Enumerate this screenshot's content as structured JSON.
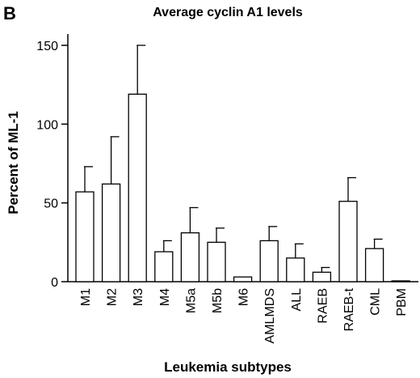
{
  "panel_letter": "B",
  "chart_data": {
    "type": "bar",
    "title": "Average cyclin A1 levels",
    "xlabel": "Leukemia subtypes",
    "ylabel": "Percent of ML-1",
    "ylim": [
      0,
      150
    ],
    "yticks": [
      0,
      50,
      100,
      150
    ],
    "grid": false,
    "error_bars": true,
    "categories": [
      "M1",
      "M2",
      "M3",
      "M4",
      "M5a",
      "M5b",
      "M6",
      "AMLMDS",
      "ALL",
      "RAEB",
      "RAEB-t",
      "CML",
      "PBM"
    ],
    "values": [
      57,
      62,
      119,
      19,
      31,
      25,
      3,
      26,
      15,
      6,
      51,
      21,
      0.5
    ],
    "errors": [
      16,
      30,
      31,
      7,
      16,
      9,
      0,
      9,
      9,
      3,
      15,
      6,
      0
    ]
  }
}
